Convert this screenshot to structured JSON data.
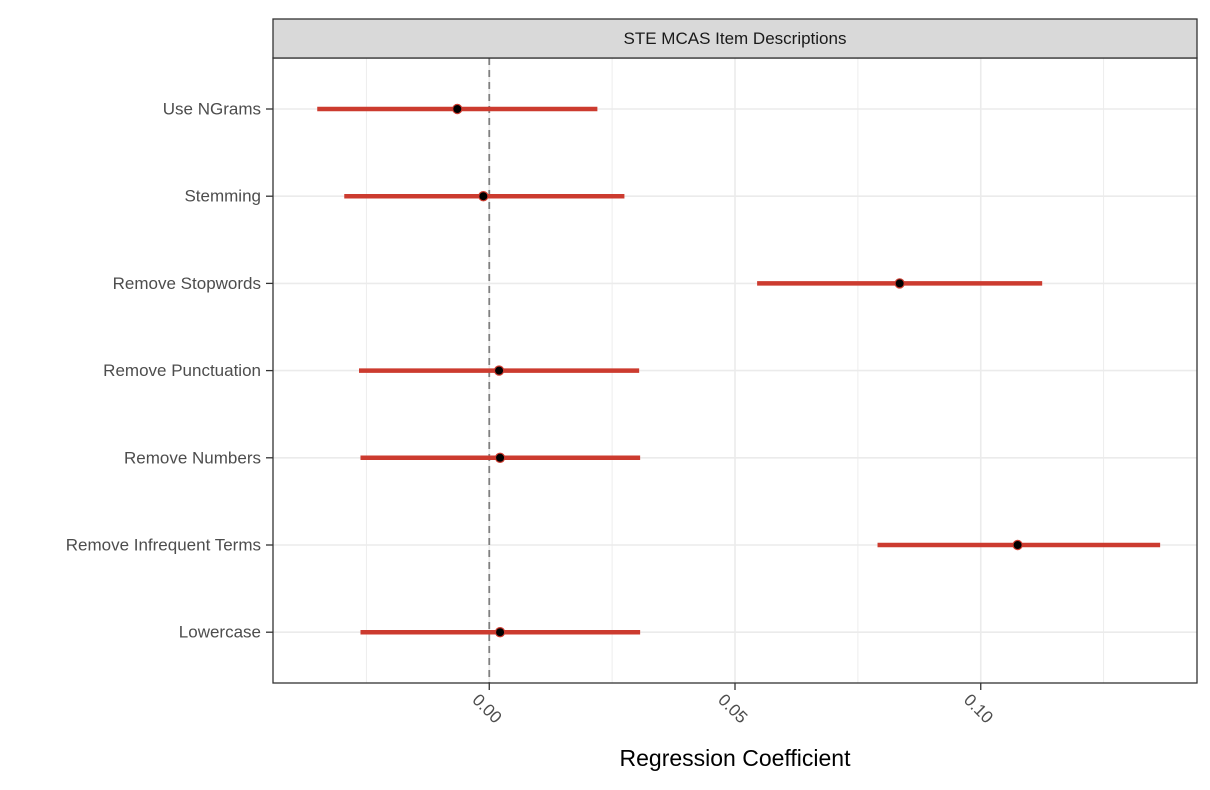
{
  "chart_data": {
    "type": "forest",
    "title": "",
    "facet_label": "STE MCAS Item Descriptions",
    "xlabel": "Regression Coefficient",
    "ylabel": "",
    "xlim": [
      -0.044,
      0.144
    ],
    "x_ticks": [
      0.0,
      0.05,
      0.1
    ],
    "x_tick_labels": [
      "0.00",
      "0.05",
      "0.10"
    ],
    "reference_line": 0,
    "grid": true,
    "colors": {
      "interval": "#cc3b2f",
      "point": "#000000",
      "reference_line": "#808080",
      "grid": "#ebebeb",
      "strip_fill": "#d9d9d9"
    },
    "categories": [
      "Use NGrams",
      "Stemming",
      "Remove Stopwords",
      "Remove Punctuation",
      "Remove Numbers",
      "Remove Infrequent Terms",
      "Lowercase"
    ],
    "estimates": [
      -0.0065,
      -0.0012,
      0.0835,
      0.002,
      0.0022,
      0.1075,
      0.0022
    ],
    "lower": [
      -0.035,
      -0.0295,
      0.0545,
      -0.0265,
      -0.0262,
      0.079,
      -0.0262
    ],
    "upper": [
      0.022,
      0.0275,
      0.1125,
      0.0305,
      0.0307,
      0.1365,
      0.0307
    ]
  }
}
